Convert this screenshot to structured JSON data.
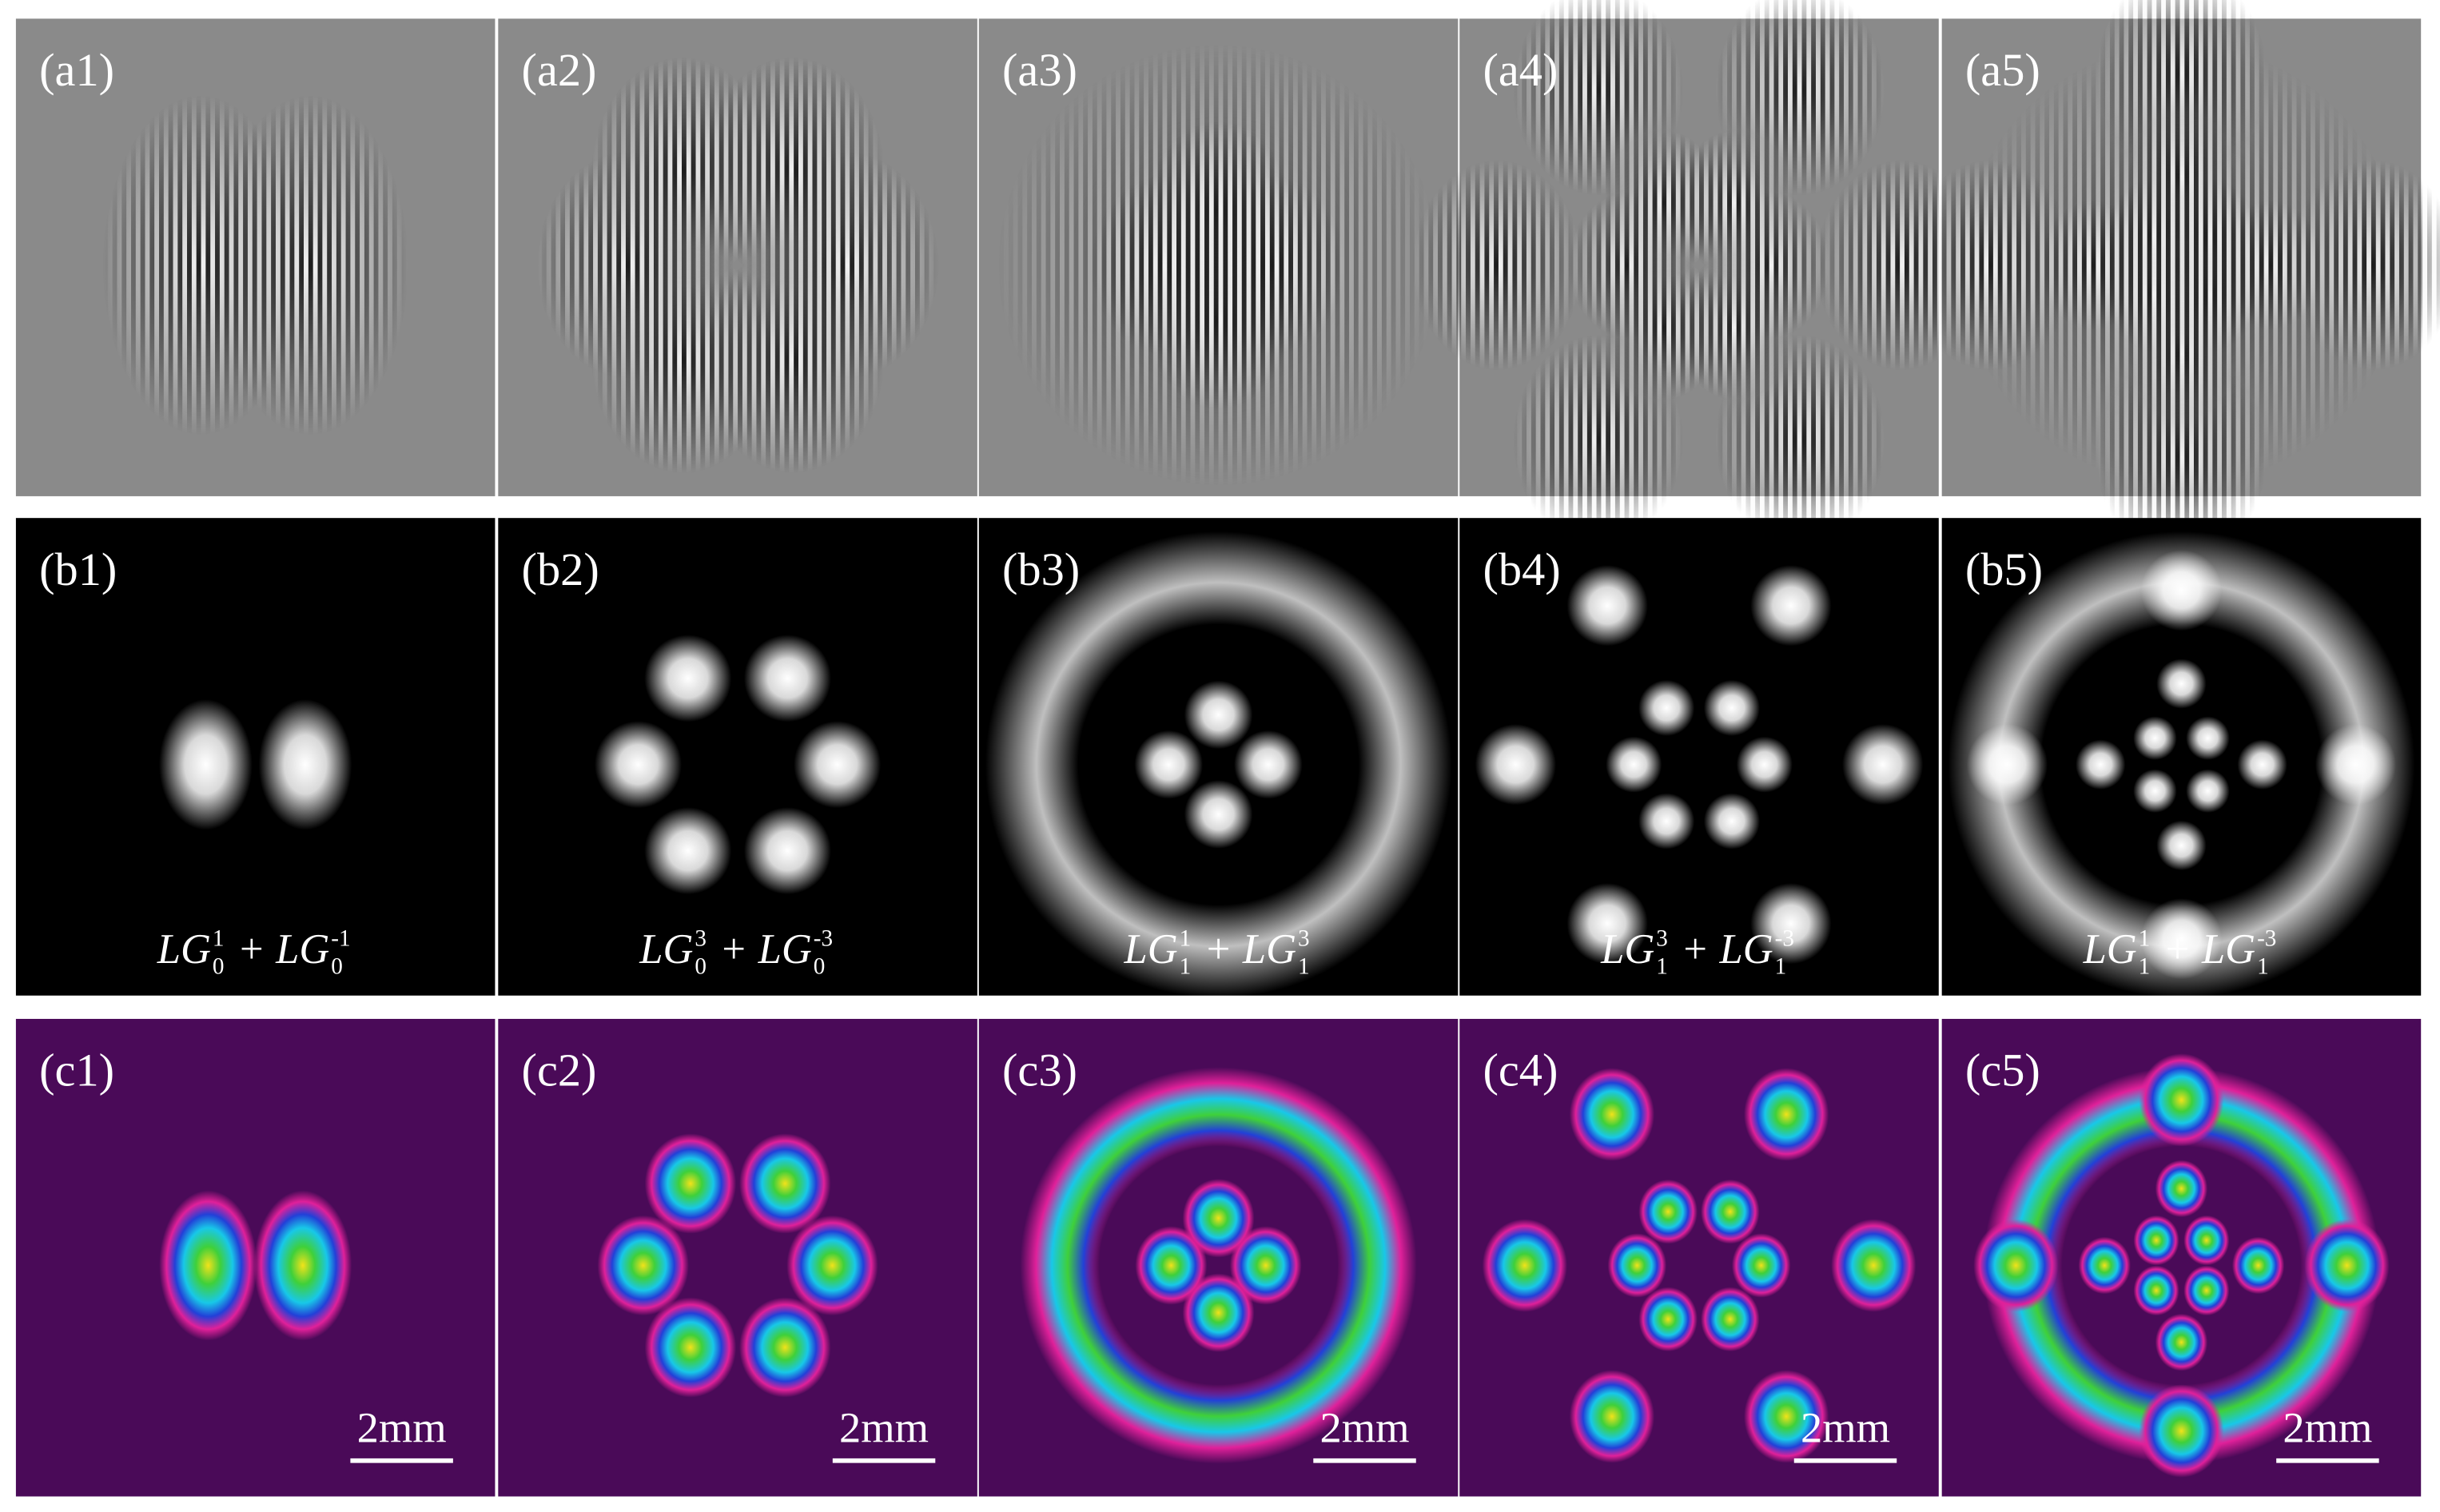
{
  "rows": [
    {
      "labels": [
        "(a1)",
        "(a2)",
        "(a3)",
        "(a4)",
        "(a5)"
      ]
    },
    {
      "labels": [
        "(b1)",
        "(b2)",
        "(b3)",
        "(b4)",
        "(b5)"
      ],
      "formulas": [
        {
          "terms": [
            {
              "base": "LG",
              "sub": "0",
              "sup": "1"
            },
            {
              "base": "LG",
              "sub": "0",
              "sup": "-1"
            }
          ],
          "operator": "+"
        },
        {
          "terms": [
            {
              "base": "LG",
              "sub": "0",
              "sup": "3"
            },
            {
              "base": "LG",
              "sub": "0",
              "sup": "-3"
            }
          ],
          "operator": "+"
        },
        {
          "terms": [
            {
              "base": "LG",
              "sub": "1",
              "sup": "1"
            },
            {
              "base": "LG",
              "sub": "1",
              "sup": "3"
            }
          ],
          "operator": "+"
        },
        {
          "terms": [
            {
              "base": "LG",
              "sub": "1",
              "sup": "3"
            },
            {
              "base": "LG",
              "sub": "1",
              "sup": "-3"
            }
          ],
          "operator": "+"
        },
        {
          "terms": [
            {
              "base": "LG",
              "sub": "1",
              "sup": "1"
            },
            {
              "base": "LG",
              "sub": "1",
              "sup": "-3"
            }
          ],
          "operator": "+"
        }
      ]
    },
    {
      "labels": [
        "(c1)",
        "(c2)",
        "(c3)",
        "(c4)",
        "(c5)"
      ],
      "scale_bars": [
        "2mm",
        "2mm",
        "2mm",
        "2mm",
        "2mm"
      ]
    }
  ]
}
